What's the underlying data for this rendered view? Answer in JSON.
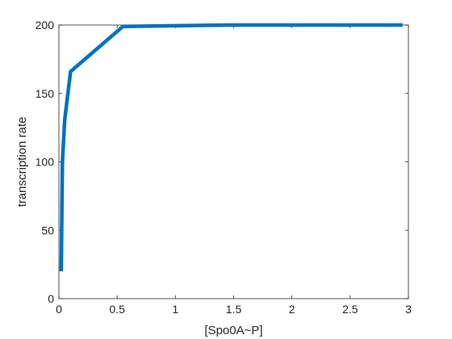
{
  "chart_data": {
    "type": "line",
    "title": "",
    "xlabel": "[Spo0A~P]",
    "ylabel": "transcription rate",
    "xlim": [
      0,
      3
    ],
    "ylim": [
      0,
      200
    ],
    "xticks": [
      0,
      0.5,
      1,
      1.5,
      2,
      2.5,
      3
    ],
    "xtick_labels": [
      "0",
      "0.5",
      "1",
      "1.5",
      "2",
      "2.5",
      "3"
    ],
    "yticks": [
      0,
      50,
      100,
      150,
      200
    ],
    "ytick_labels": [
      "0",
      "50",
      "100",
      "150",
      "200"
    ],
    "grid": false,
    "legend": false,
    "color": "#0072BD",
    "series": [
      {
        "x": [
          0.02,
          0.03,
          0.05,
          0.1,
          0.55,
          1,
          1.5,
          2,
          2.5,
          2.95
        ],
        "y": [
          20,
          100,
          131,
          166,
          199,
          199.5,
          200,
          200,
          200,
          200
        ]
      }
    ]
  }
}
